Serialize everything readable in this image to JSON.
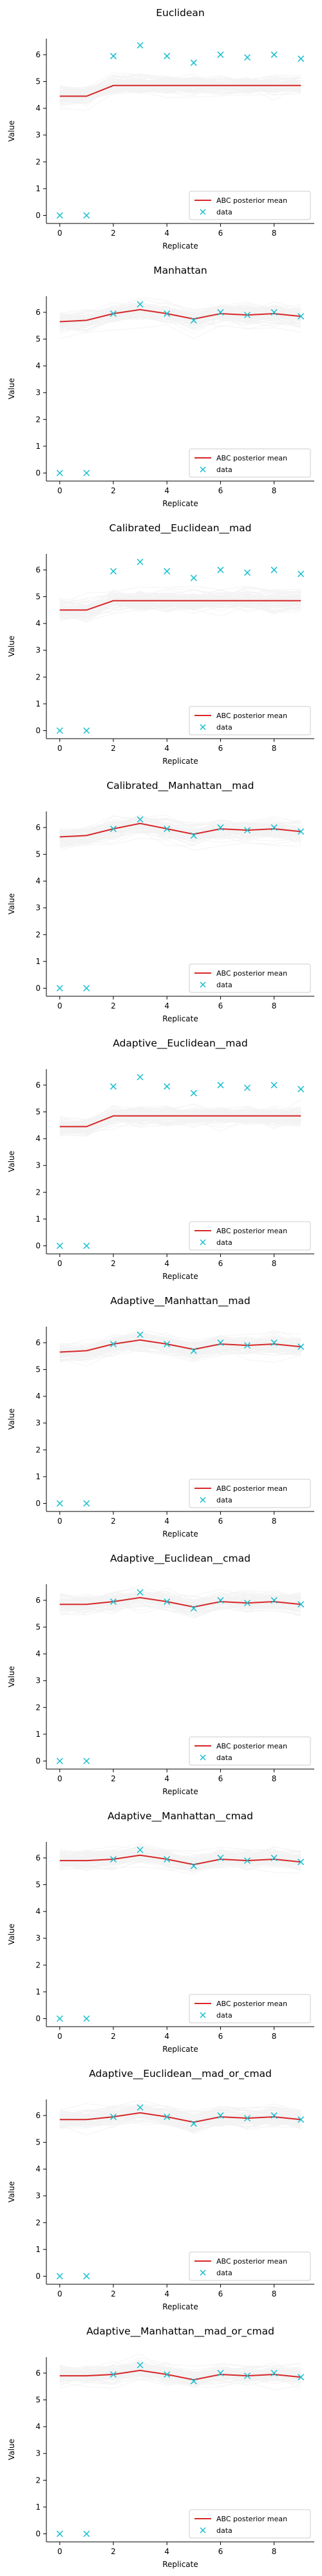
{
  "figure": {
    "xlabel": "Replicate",
    "ylabel": "Value",
    "legend_mean": "ABC posterior mean",
    "legend_data": "data",
    "colors": {
      "mean": "#d62728",
      "data": "#17becf",
      "samples": "#888888"
    }
  },
  "chart_data": [
    {
      "type": "line",
      "title": "Euclidean",
      "xlabel": "Replicate",
      "ylabel": "Value",
      "x": [
        0,
        1,
        2,
        3,
        4,
        5,
        6,
        7,
        8,
        9
      ],
      "xlim": [
        -0.5,
        9.5
      ],
      "ylim": [
        -0.3,
        6.6
      ],
      "xticks": [
        0,
        2,
        4,
        6,
        8
      ],
      "yticks": [
        0,
        1,
        2,
        3,
        4,
        5,
        6
      ],
      "series": [
        {
          "name": "ABC posterior mean",
          "values": [
            4.45,
            4.45,
            4.85,
            4.85,
            4.85,
            4.85,
            4.85,
            4.85,
            4.85,
            4.85
          ]
        },
        {
          "name": "data",
          "values": [
            0,
            0,
            5.95,
            6.35,
            5.95,
            5.7,
            6.0,
            5.9,
            6.0,
            5.85
          ]
        }
      ],
      "legend_position": "lower right"
    },
    {
      "type": "line",
      "title": "Manhattan",
      "xlabel": "Replicate",
      "ylabel": "Value",
      "x": [
        0,
        1,
        2,
        3,
        4,
        5,
        6,
        7,
        8,
        9
      ],
      "xlim": [
        -0.5,
        9.5
      ],
      "ylim": [
        -0.3,
        6.6
      ],
      "xticks": [
        0,
        2,
        4,
        6,
        8
      ],
      "yticks": [
        0,
        1,
        2,
        3,
        4,
        5,
        6
      ],
      "series": [
        {
          "name": "ABC posterior mean",
          "values": [
            5.65,
            5.7,
            5.95,
            6.1,
            5.95,
            5.75,
            5.95,
            5.9,
            5.95,
            5.85
          ]
        },
        {
          "name": "data",
          "values": [
            0,
            0,
            5.95,
            6.3,
            5.95,
            5.7,
            6.0,
            5.9,
            6.0,
            5.85
          ]
        }
      ],
      "legend_position": "lower right"
    },
    {
      "type": "line",
      "title": "Calibrated__Euclidean__mad",
      "xlabel": "Replicate",
      "ylabel": "Value",
      "x": [
        0,
        1,
        2,
        3,
        4,
        5,
        6,
        7,
        8,
        9
      ],
      "xlim": [
        -0.5,
        9.5
      ],
      "ylim": [
        -0.3,
        6.6
      ],
      "xticks": [
        0,
        2,
        4,
        6,
        8
      ],
      "yticks": [
        0,
        1,
        2,
        3,
        4,
        5,
        6
      ],
      "series": [
        {
          "name": "ABC posterior mean",
          "values": [
            4.5,
            4.5,
            4.85,
            4.85,
            4.85,
            4.85,
            4.85,
            4.85,
            4.85,
            4.85
          ]
        },
        {
          "name": "data",
          "values": [
            0,
            0,
            5.95,
            6.3,
            5.95,
            5.7,
            6.0,
            5.9,
            6.0,
            5.85
          ]
        }
      ],
      "legend_position": "lower right"
    },
    {
      "type": "line",
      "title": "Calibrated__Manhattan__mad",
      "xlabel": "Replicate",
      "ylabel": "Value",
      "x": [
        0,
        1,
        2,
        3,
        4,
        5,
        6,
        7,
        8,
        9
      ],
      "xlim": [
        -0.5,
        9.5
      ],
      "ylim": [
        -0.3,
        6.6
      ],
      "xticks": [
        0,
        2,
        4,
        6,
        8
      ],
      "yticks": [
        0,
        1,
        2,
        3,
        4,
        5,
        6
      ],
      "series": [
        {
          "name": "ABC posterior mean",
          "values": [
            5.65,
            5.7,
            5.95,
            6.15,
            5.95,
            5.75,
            5.95,
            5.9,
            5.95,
            5.85
          ]
        },
        {
          "name": "data",
          "values": [
            0,
            0,
            5.95,
            6.3,
            5.95,
            5.7,
            6.0,
            5.9,
            6.0,
            5.85
          ]
        }
      ],
      "legend_position": "lower right"
    },
    {
      "type": "line",
      "title": "Adaptive__Euclidean__mad",
      "xlabel": "Replicate",
      "ylabel": "Value",
      "x": [
        0,
        1,
        2,
        3,
        4,
        5,
        6,
        7,
        8,
        9
      ],
      "xlim": [
        -0.5,
        9.5
      ],
      "ylim": [
        -0.3,
        6.6
      ],
      "xticks": [
        0,
        2,
        4,
        6,
        8
      ],
      "yticks": [
        0,
        1,
        2,
        3,
        4,
        5,
        6
      ],
      "series": [
        {
          "name": "ABC posterior mean",
          "values": [
            4.45,
            4.45,
            4.85,
            4.85,
            4.85,
            4.85,
            4.85,
            4.85,
            4.85,
            4.85
          ]
        },
        {
          "name": "data",
          "values": [
            0,
            0,
            5.95,
            6.3,
            5.95,
            5.7,
            6.0,
            5.9,
            6.0,
            5.85
          ]
        }
      ],
      "legend_position": "lower right"
    },
    {
      "type": "line",
      "title": "Adaptive__Manhattan__mad",
      "xlabel": "Replicate",
      "ylabel": "Value",
      "x": [
        0,
        1,
        2,
        3,
        4,
        5,
        6,
        7,
        8,
        9
      ],
      "xlim": [
        -0.5,
        9.5
      ],
      "ylim": [
        -0.3,
        6.6
      ],
      "xticks": [
        0,
        2,
        4,
        6,
        8
      ],
      "yticks": [
        0,
        1,
        2,
        3,
        4,
        5,
        6
      ],
      "series": [
        {
          "name": "ABC posterior mean",
          "values": [
            5.65,
            5.7,
            5.95,
            6.1,
            5.95,
            5.75,
            5.95,
            5.9,
            5.95,
            5.85
          ]
        },
        {
          "name": "data",
          "values": [
            0,
            0,
            5.95,
            6.3,
            5.95,
            5.7,
            6.0,
            5.9,
            6.0,
            5.85
          ]
        }
      ],
      "legend_position": "lower right"
    },
    {
      "type": "line",
      "title": "Adaptive__Euclidean__cmad",
      "xlabel": "Replicate",
      "ylabel": "Value",
      "x": [
        0,
        1,
        2,
        3,
        4,
        5,
        6,
        7,
        8,
        9
      ],
      "xlim": [
        -0.5,
        9.5
      ],
      "ylim": [
        -0.3,
        6.6
      ],
      "xticks": [
        0,
        2,
        4,
        6,
        8
      ],
      "yticks": [
        0,
        1,
        2,
        3,
        4,
        5,
        6
      ],
      "series": [
        {
          "name": "ABC posterior mean",
          "values": [
            5.85,
            5.85,
            5.95,
            6.1,
            5.95,
            5.75,
            5.95,
            5.9,
            5.95,
            5.85
          ]
        },
        {
          "name": "data",
          "values": [
            0,
            0,
            5.95,
            6.3,
            5.95,
            5.7,
            6.0,
            5.9,
            6.0,
            5.85
          ]
        }
      ],
      "legend_position": "lower right"
    },
    {
      "type": "line",
      "title": "Adaptive__Manhattan__cmad",
      "xlabel": "Replicate",
      "ylabel": "Value",
      "x": [
        0,
        1,
        2,
        3,
        4,
        5,
        6,
        7,
        8,
        9
      ],
      "xlim": [
        -0.5,
        9.5
      ],
      "ylim": [
        -0.3,
        6.6
      ],
      "xticks": [
        0,
        2,
        4,
        6,
        8
      ],
      "yticks": [
        0,
        1,
        2,
        3,
        4,
        5,
        6
      ],
      "series": [
        {
          "name": "ABC posterior mean",
          "values": [
            5.9,
            5.9,
            5.95,
            6.1,
            5.95,
            5.75,
            5.95,
            5.9,
            5.95,
            5.85
          ]
        },
        {
          "name": "data",
          "values": [
            0,
            0,
            5.95,
            6.3,
            5.95,
            5.7,
            6.0,
            5.9,
            6.0,
            5.85
          ]
        }
      ],
      "legend_position": "lower right"
    },
    {
      "type": "line",
      "title": "Adaptive__Euclidean__mad_or_cmad",
      "xlabel": "Replicate",
      "ylabel": "Value",
      "x": [
        0,
        1,
        2,
        3,
        4,
        5,
        6,
        7,
        8,
        9
      ],
      "xlim": [
        -0.5,
        9.5
      ],
      "ylim": [
        -0.3,
        6.6
      ],
      "xticks": [
        0,
        2,
        4,
        6,
        8
      ],
      "yticks": [
        0,
        1,
        2,
        3,
        4,
        5,
        6
      ],
      "series": [
        {
          "name": "ABC posterior mean",
          "values": [
            5.85,
            5.85,
            5.95,
            6.1,
            5.95,
            5.75,
            5.95,
            5.9,
            5.95,
            5.85
          ]
        },
        {
          "name": "data",
          "values": [
            0,
            0,
            5.95,
            6.3,
            5.95,
            5.7,
            6.0,
            5.9,
            6.0,
            5.85
          ]
        }
      ],
      "legend_position": "lower right"
    },
    {
      "type": "line",
      "title": "Adaptive__Manhattan__mad_or_cmad",
      "xlabel": "Replicate",
      "ylabel": "Value",
      "x": [
        0,
        1,
        2,
        3,
        4,
        5,
        6,
        7,
        8,
        9
      ],
      "xlim": [
        -0.5,
        9.5
      ],
      "ylim": [
        -0.3,
        6.6
      ],
      "xticks": [
        0,
        2,
        4,
        6,
        8
      ],
      "yticks": [
        0,
        1,
        2,
        3,
        4,
        5,
        6
      ],
      "series": [
        {
          "name": "ABC posterior mean",
          "values": [
            5.9,
            5.9,
            5.95,
            6.1,
            5.95,
            5.75,
            5.95,
            5.9,
            5.95,
            5.85
          ]
        },
        {
          "name": "data",
          "values": [
            0,
            0,
            5.95,
            6.3,
            5.95,
            5.7,
            6.0,
            5.9,
            6.0,
            5.85
          ]
        }
      ],
      "legend_position": "lower right"
    }
  ]
}
